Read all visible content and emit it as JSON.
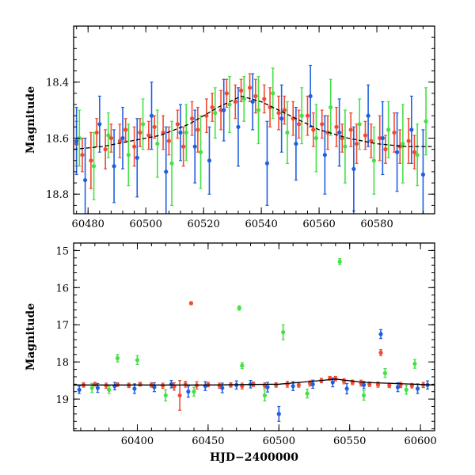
{
  "chart_data": [
    {
      "type": "scatter",
      "title": "",
      "xlabel": "",
      "ylabel": "Magnitude",
      "xlim": [
        60475,
        60600
      ],
      "ylim": [
        18.87,
        18.2
      ],
      "y_inverted": true,
      "grid": false,
      "x_ticks": [
        60480,
        60500,
        60520,
        60540,
        60560,
        60580
      ],
      "y_ticks": [
        18.4,
        18.6,
        18.8
      ],
      "x_tick_labels": [
        "60480",
        "60500",
        "60520",
        "60540",
        "60560",
        "60580"
      ],
      "y_tick_labels": [
        "18.4",
        "18.6",
        "18.8"
      ],
      "colors": {
        "blue": "#1f5fe0",
        "green": "#45e045",
        "red": "#f04a30",
        "model": "#000000"
      },
      "model_curve": {
        "style": "dashed",
        "x": [
          60475,
          60485,
          60495,
          60505,
          60515,
          60525,
          60533,
          60540,
          60550,
          60560,
          60570,
          60580,
          60590,
          60600
        ],
        "y": [
          18.64,
          18.63,
          18.61,
          18.59,
          18.55,
          18.49,
          18.45,
          18.47,
          18.52,
          18.57,
          18.6,
          18.62,
          18.63,
          18.63
        ]
      },
      "series": [
        {
          "color_key": "red",
          "x": [
            60476,
            60478,
            60481,
            60483,
            60486,
            60488,
            60491,
            60493,
            60496,
            60498,
            60501,
            60503,
            60506,
            60508,
            60511,
            60513,
            60516,
            60518,
            60521,
            60523,
            60526,
            60528,
            60531,
            60533,
            60536,
            60538,
            60541,
            60543,
            60546,
            60548,
            60551,
            60553,
            60556,
            60558,
            60561,
            60563,
            60566,
            60568,
            60571,
            60573,
            60576,
            60578,
            60581,
            60583,
            60586,
            60588,
            60591,
            60593
          ],
          "y": [
            18.62,
            18.66,
            18.68,
            18.58,
            18.64,
            18.6,
            18.61,
            18.57,
            18.63,
            18.58,
            18.59,
            18.56,
            18.58,
            18.61,
            18.55,
            18.63,
            18.53,
            18.57,
            18.52,
            18.49,
            18.5,
            18.44,
            18.47,
            18.43,
            18.42,
            18.45,
            18.46,
            18.49,
            18.51,
            18.5,
            18.53,
            18.55,
            18.52,
            18.57,
            18.55,
            18.58,
            18.56,
            18.6,
            18.57,
            18.62,
            18.59,
            18.61,
            18.6,
            18.64,
            18.58,
            18.63,
            18.61,
            18.65
          ],
          "err": [
            0.08,
            0.06,
            0.1,
            0.05,
            0.07,
            0.05,
            0.06,
            0.04,
            0.07,
            0.05,
            0.05,
            0.04,
            0.06,
            0.05,
            0.05,
            0.07,
            0.06,
            0.08,
            0.06,
            0.05,
            0.07,
            0.05,
            0.06,
            0.04,
            0.05,
            0.06,
            0.05,
            0.07,
            0.06,
            0.05,
            0.06,
            0.05,
            0.07,
            0.06,
            0.05,
            0.06,
            0.07,
            0.05,
            0.06,
            0.07,
            0.05,
            0.06,
            0.08,
            0.05,
            0.07,
            0.06,
            0.08,
            0.06
          ]
        },
        {
          "color_key": "green",
          "x": [
            60477,
            60482,
            60487,
            60494,
            60499,
            60504,
            60509,
            60514,
            60519,
            60524,
            60529,
            60534,
            60539,
            60544,
            60549,
            60554,
            60559,
            60564,
            60569,
            60574,
            60579,
            60584,
            60589,
            60594,
            60597
          ],
          "y": [
            18.6,
            18.7,
            18.59,
            18.66,
            18.55,
            18.62,
            18.69,
            18.58,
            18.65,
            18.51,
            18.48,
            18.46,
            18.5,
            18.44,
            18.58,
            18.52,
            18.6,
            18.49,
            18.63,
            18.55,
            18.68,
            18.57,
            18.62,
            18.66,
            18.54
          ],
          "err": [
            0.1,
            0.12,
            0.08,
            0.11,
            0.09,
            0.12,
            0.15,
            0.1,
            0.13,
            0.09,
            0.1,
            0.08,
            0.12,
            0.09,
            0.11,
            0.1,
            0.12,
            0.1,
            0.13,
            0.09,
            0.12,
            0.1,
            0.14,
            0.11,
            0.12
          ]
        },
        {
          "color_key": "blue",
          "x": [
            60476,
            60479,
            60484,
            60489,
            60492,
            60497,
            60502,
            60507,
            60512,
            60517,
            60522,
            60527,
            60532,
            60537,
            60542,
            60547,
            60552,
            60557,
            60562,
            60567,
            60572,
            60577,
            60582,
            60587,
            60592,
            60596
          ],
          "y": [
            18.61,
            18.75,
            18.55,
            18.7,
            18.6,
            18.67,
            18.52,
            18.72,
            18.58,
            18.63,
            18.68,
            18.5,
            18.56,
            18.47,
            18.69,
            18.53,
            18.62,
            18.45,
            18.66,
            18.58,
            18.71,
            18.52,
            18.6,
            18.65,
            18.57,
            18.73
          ],
          "err": [
            0.12,
            0.15,
            0.1,
            0.13,
            0.11,
            0.14,
            0.12,
            0.16,
            0.1,
            0.13,
            0.12,
            0.11,
            0.14,
            0.1,
            0.15,
            0.12,
            0.13,
            0.11,
            0.14,
            0.12,
            0.15,
            0.11,
            0.13,
            0.14,
            0.12,
            0.16
          ]
        }
      ]
    },
    {
      "type": "scatter",
      "title": "",
      "xlabel": "HJD−2400000",
      "ylabel": "Magnitude",
      "xlim": [
        60355,
        60610
      ],
      "ylim": [
        19.85,
        14.8
      ],
      "y_inverted": true,
      "grid": false,
      "x_ticks": [
        60400,
        60450,
        60500,
        60550,
        60600
      ],
      "y_ticks": [
        15,
        16,
        17,
        18,
        19
      ],
      "x_tick_labels": [
        "60400",
        "60450",
        "60500",
        "60550",
        "60600"
      ],
      "y_tick_labels": [
        "15",
        "16",
        "17",
        "18",
        "19"
      ],
      "colors": {
        "blue": "#1f5fe0",
        "green": "#45e045",
        "red": "#f04a30",
        "model": "#000000"
      },
      "model_curve": {
        "style": "solid",
        "x": [
          60355,
          60400,
          60450,
          60500,
          60530,
          60540,
          60560,
          60610
        ],
        "y": [
          18.62,
          18.62,
          18.62,
          18.6,
          18.5,
          18.46,
          18.55,
          18.62
        ]
      },
      "series": [
        {
          "color_key": "red",
          "x": [
            60362,
            60370,
            60378,
            60386,
            60394,
            60402,
            60410,
            60418,
            60426,
            60430,
            60434,
            60438,
            60442,
            60450,
            60458,
            60466,
            60474,
            60482,
            60490,
            60498,
            60506,
            60514,
            60522,
            60530,
            60536,
            60540,
            60546,
            60552,
            60558,
            60564,
            60570,
            60572,
            60578,
            60586,
            60594,
            60602
          ],
          "y": [
            18.62,
            18.6,
            18.64,
            18.61,
            18.63,
            18.6,
            18.62,
            18.64,
            18.66,
            18.9,
            18.6,
            16.42,
            18.63,
            18.61,
            18.64,
            18.62,
            18.65,
            18.6,
            18.63,
            18.62,
            18.6,
            18.62,
            18.58,
            18.5,
            18.44,
            18.45,
            18.52,
            18.55,
            18.57,
            18.6,
            18.61,
            17.75,
            18.63,
            18.62,
            18.64,
            18.62
          ],
          "err": [
            0.06,
            0.05,
            0.07,
            0.05,
            0.06,
            0.05,
            0.06,
            0.07,
            0.1,
            0.4,
            0.08,
            0.04,
            0.1,
            0.06,
            0.07,
            0.06,
            0.08,
            0.06,
            0.07,
            0.06,
            0.08,
            0.06,
            0.07,
            0.06,
            0.05,
            0.06,
            0.07,
            0.06,
            0.08,
            0.06,
            0.07,
            0.08,
            0.06,
            0.07,
            0.06,
            0.07
          ]
        },
        {
          "color_key": "green",
          "x": [
            60368,
            60380,
            60386,
            60400,
            60420,
            60440,
            60472,
            60474,
            60490,
            60503,
            60520,
            60543,
            60560,
            60575,
            60590,
            60596
          ],
          "y": [
            18.7,
            18.75,
            17.9,
            17.95,
            18.9,
            18.8,
            16.55,
            18.1,
            18.9,
            17.2,
            18.85,
            15.3,
            18.9,
            18.3,
            18.75,
            18.05
          ],
          "err": [
            0.12,
            0.1,
            0.1,
            0.12,
            0.15,
            0.12,
            0.06,
            0.08,
            0.15,
            0.2,
            0.12,
            0.08,
            0.13,
            0.12,
            0.12,
            0.12
          ]
        },
        {
          "color_key": "blue",
          "x": [
            60359,
            60372,
            60384,
            60398,
            60412,
            60424,
            60436,
            60448,
            60460,
            60470,
            60480,
            60492,
            60500,
            60510,
            60524,
            60538,
            60548,
            60560,
            60572,
            60584,
            60598,
            60605
          ],
          "y": [
            18.75,
            18.7,
            18.65,
            18.72,
            18.68,
            18.6,
            18.8,
            18.65,
            18.7,
            18.62,
            18.6,
            18.68,
            19.4,
            18.65,
            18.6,
            18.55,
            18.72,
            18.62,
            17.25,
            18.68,
            18.72,
            18.62
          ],
          "err": [
            0.1,
            0.12,
            0.1,
            0.13,
            0.12,
            0.1,
            0.15,
            0.12,
            0.13,
            0.11,
            0.1,
            0.13,
            0.2,
            0.12,
            0.11,
            0.12,
            0.14,
            0.1,
            0.12,
            0.12,
            0.13,
            0.11
          ]
        }
      ]
    }
  ]
}
